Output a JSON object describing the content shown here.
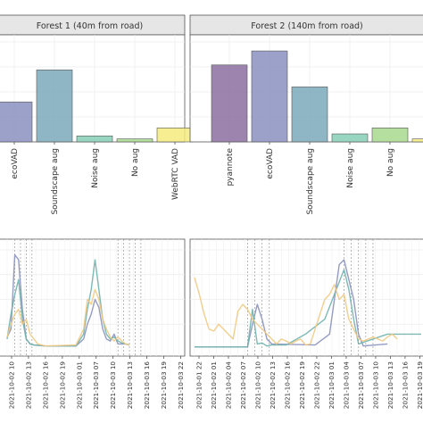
{
  "chart_data": [
    {
      "type": "bar",
      "title": "Forest 1 (40m from road)",
      "categories": [
        "ecoVAD",
        "Soundscape aug",
        "Noise aug",
        "No aug",
        "WebRTC VAD"
      ],
      "values": [
        0.4,
        0.72,
        0.06,
        0.03,
        0.14
      ],
      "ylim": [
        0,
        1
      ],
      "colors": [
        "#8a91be",
        "#7ba9ba",
        "#86cfb7",
        "#a8d98e",
        "#f6eb7f"
      ],
      "grid": true
    },
    {
      "type": "bar",
      "title": "Forest 2 (140m from road)",
      "categories": [
        "pyannote",
        "ecoVAD",
        "Soundscape aug",
        "Noise aug",
        "No aug",
        "WebRTC VAD"
      ],
      "values": [
        0.77,
        0.91,
        0.55,
        0.08,
        0.14,
        0.03
      ],
      "ylim": [
        0,
        1
      ],
      "colors": [
        "#8b6ea0",
        "#8a91be",
        "#7ba9ba",
        "#86cfb7",
        "#a8d98e",
        "#f6eb7f"
      ],
      "grid": true
    },
    {
      "type": "line",
      "x": [
        "2021-10-02 10",
        "2021-10-02 13",
        "2021-10-02 16",
        "2021-10-02 19",
        "2021-10-03 01",
        "2021-10-03 07",
        "2021-10-03 10",
        "2021-10-03 13",
        "2021-10-03 16",
        "2021-10-03 19",
        "2021-10-03 22"
      ],
      "xlim": [
        0,
        46
      ],
      "ylim": [
        0,
        1
      ],
      "grid": true,
      "vlines": [
        2,
        3.5,
        5,
        6.5,
        29,
        30.5,
        32,
        33.5,
        35
      ],
      "series": [
        {
          "color": "#8a91be",
          "values": [
            [
              0,
              0.12
            ],
            [
              1,
              0.2
            ],
            [
              2,
              0.95
            ],
            [
              3,
              0.9
            ],
            [
              4,
              0.4
            ],
            [
              5,
              0.1
            ],
            [
              6,
              0.05
            ],
            [
              7,
              0.04
            ],
            [
              10,
              0.03
            ],
            [
              18,
              0.03
            ],
            [
              20,
              0.1
            ],
            [
              21,
              0.25
            ],
            [
              22,
              0.35
            ],
            [
              23,
              0.5
            ],
            [
              24,
              0.42
            ],
            [
              25,
              0.2
            ],
            [
              26,
              0.1
            ],
            [
              27,
              0.08
            ],
            [
              28,
              0.15
            ],
            [
              29,
              0.05
            ],
            [
              30,
              0.05
            ],
            [
              31,
              0.05
            ],
            [
              32,
              0.04
            ]
          ]
        },
        {
          "color": "#6fb3ad",
          "values": [
            [
              0,
              0.1
            ],
            [
              1,
              0.35
            ],
            [
              2,
              0.55
            ],
            [
              3,
              0.7
            ],
            [
              4,
              0.3
            ],
            [
              5,
              0.1
            ],
            [
              6,
              0.05
            ],
            [
              7,
              0.04
            ],
            [
              10,
              0.03
            ],
            [
              18,
              0.03
            ],
            [
              20,
              0.15
            ],
            [
              21,
              0.4
            ],
            [
              22,
              0.6
            ],
            [
              23,
              0.9
            ],
            [
              24,
              0.6
            ],
            [
              25,
              0.3
            ],
            [
              26,
              0.15
            ],
            [
              27,
              0.1
            ],
            [
              28,
              0.12
            ],
            [
              29,
              0.08
            ],
            [
              30,
              0.06
            ],
            [
              31,
              0.05
            ],
            [
              32,
              0.04
            ]
          ]
        },
        {
          "color": "#f2c980",
          "values": [
            [
              0,
              0.12
            ],
            [
              1,
              0.25
            ],
            [
              2,
              0.35
            ],
            [
              3,
              0.4
            ],
            [
              4,
              0.25
            ],
            [
              5,
              0.3
            ],
            [
              6,
              0.15
            ],
            [
              7,
              0.1
            ],
            [
              8,
              0.05
            ],
            [
              10,
              0.03
            ],
            [
              18,
              0.04
            ],
            [
              20,
              0.2
            ],
            [
              21,
              0.5
            ],
            [
              22,
              0.45
            ],
            [
              23,
              0.6
            ],
            [
              24,
              0.5
            ],
            [
              25,
              0.3
            ],
            [
              26,
              0.2
            ],
            [
              27,
              0.12
            ],
            [
              28,
              0.08
            ],
            [
              29,
              0.12
            ],
            [
              30,
              0.08
            ],
            [
              31,
              0.05
            ],
            [
              32,
              0.04
            ]
          ]
        }
      ]
    },
    {
      "type": "line",
      "x": [
        "2021-10-01 22",
        "2021-10-02 01",
        "2021-10-02 04",
        "2021-10-02 07",
        "2021-10-02 10",
        "2021-10-02 13",
        "2021-10-02 16",
        "2021-10-02 19",
        "2021-10-02 22",
        "2021-10-03 01",
        "2021-10-03 04",
        "2021-10-03 07",
        "2021-10-03 10",
        "2021-10-03 13",
        "2021-10-03 16",
        "2021-10-03 19"
      ],
      "xlim": [
        0,
        47
      ],
      "ylim": [
        0,
        1
      ],
      "grid": true,
      "vlines": [
        11,
        12.5,
        14,
        15.5,
        31,
        32.5,
        34,
        35.5,
        37
      ],
      "series": [
        {
          "color": "#8a91be",
          "values": [
            [
              0,
              0.02
            ],
            [
              11,
              0.02
            ],
            [
              12,
              0.25
            ],
            [
              13,
              0.45
            ],
            [
              14,
              0.3
            ],
            [
              15,
              0.1
            ],
            [
              16,
              0.05
            ],
            [
              25,
              0.04
            ],
            [
              28,
              0.15
            ],
            [
              29,
              0.5
            ],
            [
              30,
              0.85
            ],
            [
              31,
              0.9
            ],
            [
              32,
              0.7
            ],
            [
              33,
              0.5
            ],
            [
              34,
              0.15
            ],
            [
              35,
              0.03
            ],
            [
              40,
              0.05
            ]
          ]
        },
        {
          "color": "#6fb3ad",
          "values": [
            [
              0,
              0.02
            ],
            [
              11,
              0.02
            ],
            [
              12,
              0.4
            ],
            [
              13,
              0.05
            ],
            [
              14,
              0.06
            ],
            [
              15,
              0.03
            ],
            [
              16,
              0.04
            ],
            [
              19,
              0.04
            ],
            [
              23,
              0.15
            ],
            [
              27,
              0.3
            ],
            [
              29,
              0.55
            ],
            [
              31,
              0.8
            ],
            [
              32,
              0.6
            ],
            [
              33,
              0.3
            ],
            [
              34,
              0.05
            ],
            [
              40,
              0.15
            ],
            [
              47,
              0.15
            ]
          ]
        },
        {
          "color": "#f2c980",
          "values": [
            [
              0,
              0.72
            ],
            [
              1,
              0.55
            ],
            [
              2,
              0.35
            ],
            [
              3,
              0.2
            ],
            [
              4,
              0.18
            ],
            [
              5,
              0.25
            ],
            [
              6,
              0.2
            ],
            [
              7,
              0.15
            ],
            [
              8,
              0.1
            ],
            [
              9,
              0.38
            ],
            [
              10,
              0.45
            ],
            [
              11,
              0.4
            ],
            [
              12,
              0.3
            ],
            [
              13,
              0.25
            ],
            [
              14,
              0.2
            ],
            [
              15,
              0.15
            ],
            [
              16,
              0.1
            ],
            [
              17,
              0.05
            ],
            [
              18,
              0.1
            ],
            [
              19,
              0.08
            ],
            [
              20,
              0.05
            ],
            [
              21,
              0.08
            ],
            [
              22,
              0.1
            ],
            [
              23,
              0.04
            ],
            [
              24,
              0.05
            ],
            [
              25,
              0.2
            ],
            [
              26,
              0.35
            ],
            [
              27,
              0.5
            ],
            [
              28,
              0.55
            ],
            [
              29,
              0.65
            ],
            [
              30,
              0.5
            ],
            [
              31,
              0.55
            ],
            [
              32,
              0.3
            ],
            [
              33,
              0.2
            ],
            [
              34,
              0.1
            ],
            [
              35,
              0.08
            ],
            [
              36,
              0.1
            ],
            [
              37,
              0.12
            ],
            [
              38,
              0.1
            ],
            [
              39,
              0.08
            ],
            [
              40,
              0.12
            ],
            [
              41,
              0.15
            ],
            [
              42,
              0.1
            ]
          ]
        }
      ]
    }
  ]
}
